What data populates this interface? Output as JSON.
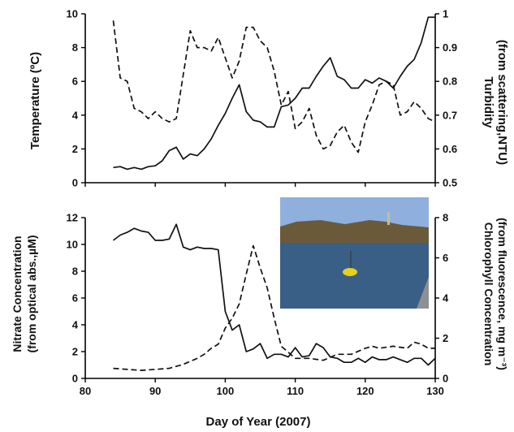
{
  "chart_data": [
    {
      "type": "line",
      "x_range": [
        80,
        130
      ],
      "xticks": [
        80,
        90,
        100,
        110,
        120,
        130
      ],
      "xlabel": "Day of Year (2007)",
      "ylabel_left": "Temperature (ºC)",
      "ylim_left": [
        0,
        10
      ],
      "yticks_left": [
        0,
        2,
        4,
        6,
        8,
        10
      ],
      "ylabel_right_line1": "Turbidity",
      "ylabel_right_line2": "(from scattering,NTU)",
      "ylim_right": [
        0.5,
        1.0
      ],
      "yticks_right": [
        "0.5",
        "0.6",
        "0.7",
        "0.8",
        "0.9",
        "1"
      ],
      "series": [
        {
          "style": "solid",
          "axis": "left",
          "points": [
            [
              84,
              0.9
            ],
            [
              85,
              0.95
            ],
            [
              86,
              0.8
            ],
            [
              87,
              0.9
            ],
            [
              88,
              0.8
            ],
            [
              89,
              0.95
            ],
            [
              90,
              1.0
            ],
            [
              91,
              1.3
            ],
            [
              92,
              1.9
            ],
            [
              93,
              2.1
            ],
            [
              94,
              1.4
            ],
            [
              95,
              1.7
            ],
            [
              96,
              1.6
            ],
            [
              97,
              2.0
            ],
            [
              98,
              2.6
            ],
            [
              99,
              3.4
            ],
            [
              100,
              4.1
            ],
            [
              101,
              5.0
            ],
            [
              102,
              5.8
            ],
            [
              103,
              4.2
            ],
            [
              104,
              3.7
            ],
            [
              105,
              3.6
            ],
            [
              106,
              3.3
            ],
            [
              107,
              3.3
            ],
            [
              108,
              4.5
            ],
            [
              109,
              4.6
            ],
            [
              110,
              5.0
            ],
            [
              111,
              5.6
            ],
            [
              112,
              5.6
            ],
            [
              113,
              6.3
            ],
            [
              114,
              6.9
            ],
            [
              115,
              7.4
            ],
            [
              116,
              6.3
            ],
            [
              117,
              6.1
            ],
            [
              118,
              5.6
            ],
            [
              119,
              5.6
            ],
            [
              120,
              6.1
            ],
            [
              121,
              5.9
            ],
            [
              122,
              6.2
            ],
            [
              123,
              6.0
            ],
            [
              124,
              5.6
            ],
            [
              125,
              6.3
            ],
            [
              126,
              6.9
            ],
            [
              127,
              7.3
            ],
            [
              128,
              8.3
            ],
            [
              129,
              9.8
            ],
            [
              130,
              9.8
            ]
          ]
        },
        {
          "style": "dashed",
          "axis": "right",
          "points": [
            [
              84,
              0.98
            ],
            [
              85,
              0.81
            ],
            [
              86,
              0.8
            ],
            [
              87,
              0.72
            ],
            [
              88,
              0.71
            ],
            [
              89,
              0.69
            ],
            [
              90,
              0.71
            ],
            [
              91,
              0.69
            ],
            [
              92,
              0.68
            ],
            [
              93,
              0.69
            ],
            [
              94,
              0.82
            ],
            [
              95,
              0.95
            ],
            [
              96,
              0.9
            ],
            [
              97,
              0.9
            ],
            [
              98,
              0.89
            ],
            [
              99,
              0.93
            ],
            [
              100,
              0.87
            ],
            [
              101,
              0.81
            ],
            [
              102,
              0.86
            ],
            [
              103,
              0.96
            ],
            [
              104,
              0.96
            ],
            [
              105,
              0.92
            ],
            [
              106,
              0.9
            ],
            [
              107,
              0.83
            ],
            [
              108,
              0.73
            ],
            [
              109,
              0.77
            ],
            [
              110,
              0.66
            ],
            [
              111,
              0.68
            ],
            [
              112,
              0.72
            ],
            [
              113,
              0.64
            ],
            [
              114,
              0.6
            ],
            [
              115,
              0.61
            ],
            [
              116,
              0.65
            ],
            [
              117,
              0.67
            ],
            [
              118,
              0.62
            ],
            [
              119,
              0.59
            ],
            [
              120,
              0.68
            ],
            [
              121,
              0.73
            ],
            [
              122,
              0.79
            ],
            [
              123,
              0.8
            ],
            [
              124,
              0.79
            ],
            [
              125,
              0.7
            ],
            [
              126,
              0.71
            ],
            [
              127,
              0.74
            ],
            [
              128,
              0.72
            ],
            [
              129,
              0.69
            ],
            [
              130,
              0.68
            ]
          ]
        }
      ]
    },
    {
      "type": "line",
      "x_range": [
        80,
        130
      ],
      "xticks": [
        80,
        90,
        100,
        110,
        120,
        130
      ],
      "xlabel": "Day of Year (2007)",
      "ylabel_left_line1": "Nitrate Concentration",
      "ylabel_left_line2": "(from optical abs.,µM)",
      "ylim_left": [
        0,
        12
      ],
      "yticks_left": [
        0,
        2,
        4,
        6,
        8,
        10,
        12
      ],
      "ylabel_right_line1": "Chlorophyll Concentration",
      "ylabel_right_line2": "(from fluorescence, mg m⁻³)",
      "ylim_right": [
        0,
        8
      ],
      "yticks_right": [
        0,
        2,
        4,
        6,
        8
      ],
      "series": [
        {
          "style": "solid",
          "axis": "left",
          "points": [
            [
              84,
              10.3
            ],
            [
              85,
              10.7
            ],
            [
              86,
              10.9
            ],
            [
              87,
              11.2
            ],
            [
              88,
              11.0
            ],
            [
              89,
              10.9
            ],
            [
              90,
              10.3
            ],
            [
              91,
              10.3
            ],
            [
              92,
              10.4
            ],
            [
              93,
              11.5
            ],
            [
              94,
              9.8
            ],
            [
              95,
              9.6
            ],
            [
              96,
              9.8
            ],
            [
              97,
              9.7
            ],
            [
              98,
              9.7
            ],
            [
              99,
              9.6
            ],
            [
              100,
              5.0
            ],
            [
              101,
              3.6
            ],
            [
              102,
              4.0
            ],
            [
              103,
              2.0
            ],
            [
              104,
              2.2
            ],
            [
              105,
              2.6
            ],
            [
              106,
              1.5
            ],
            [
              107,
              1.8
            ],
            [
              108,
              1.8
            ],
            [
              109,
              1.6
            ],
            [
              110,
              2.3
            ],
            [
              111,
              1.6
            ],
            [
              112,
              1.7
            ],
            [
              113,
              2.6
            ],
            [
              114,
              2.3
            ],
            [
              115,
              1.6
            ],
            [
              116,
              1.5
            ],
            [
              117,
              1.2
            ],
            [
              118,
              1.2
            ],
            [
              119,
              1.5
            ],
            [
              120,
              1.2
            ],
            [
              121,
              1.6
            ],
            [
              122,
              1.4
            ],
            [
              123,
              1.4
            ],
            [
              124,
              1.6
            ],
            [
              125,
              1.4
            ],
            [
              126,
              1.2
            ],
            [
              127,
              1.5
            ],
            [
              128,
              1.5
            ],
            [
              129,
              1.0
            ],
            [
              130,
              1.5
            ]
          ]
        },
        {
          "style": "dashed",
          "axis": "right",
          "points": [
            [
              84,
              0.5
            ],
            [
              86,
              0.45
            ],
            [
              88,
              0.4
            ],
            [
              90,
              0.45
            ],
            [
              92,
              0.5
            ],
            [
              94,
              0.7
            ],
            [
              96,
              1.0
            ],
            [
              97,
              1.2
            ],
            [
              98,
              1.5
            ],
            [
              99,
              1.7
            ],
            [
              100,
              2.5
            ],
            [
              101,
              3.0
            ],
            [
              102,
              3.7
            ],
            [
              103,
              5.2
            ],
            [
              104,
              6.6
            ],
            [
              105,
              5.5
            ],
            [
              106,
              4.5
            ],
            [
              107,
              3.0
            ],
            [
              108,
              1.6
            ],
            [
              109,
              1.3
            ],
            [
              110,
              1.0
            ],
            [
              112,
              1.0
            ],
            [
              114,
              0.9
            ],
            [
              116,
              1.2
            ],
            [
              118,
              1.2
            ],
            [
              120,
              1.5
            ],
            [
              121,
              1.6
            ],
            [
              122,
              1.5
            ],
            [
              124,
              1.6
            ],
            [
              126,
              1.5
            ],
            [
              127,
              1.8
            ],
            [
              128,
              1.7
            ],
            [
              129,
              1.5
            ],
            [
              130,
              1.5
            ]
          ]
        }
      ]
    }
  ],
  "inset_photo": {
    "colors": {
      "sky": "#8fb0dc",
      "water": "#3a5f86",
      "hills": "#6b5a3a",
      "buoy": "#e6d21c"
    }
  }
}
